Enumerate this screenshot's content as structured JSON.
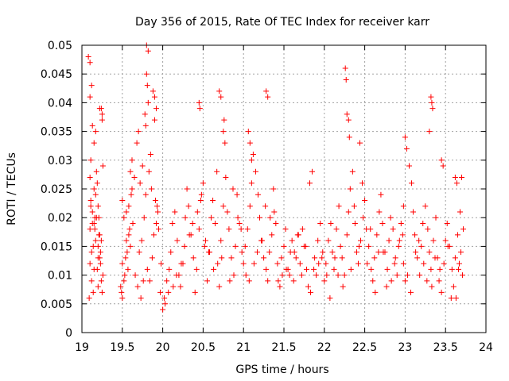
{
  "chart_data": {
    "type": "scatter",
    "title": "Day 356 of 2015, Rate Of TEC Index for receiver karr",
    "xlabel": "GPS time / hours",
    "ylabel": "ROTI / TECUs",
    "xlim": [
      19,
      24
    ],
    "ylim": [
      0,
      0.05
    ],
    "x_ticks": [
      19,
      19.5,
      20,
      20.5,
      21,
      21.5,
      22,
      22.5,
      23,
      23.5,
      24
    ],
    "x_tick_labels": [
      "19",
      "19.5",
      "20",
      "20.5",
      "21",
      "21.5",
      "22",
      "22.5",
      "23",
      "23.5",
      "24"
    ],
    "y_ticks": [
      0,
      0.005,
      0.01,
      0.015,
      0.02,
      0.025,
      0.03,
      0.035,
      0.04,
      0.045,
      0.05
    ],
    "y_tick_labels": [
      "0",
      "0.005",
      "0.01",
      "0.015",
      "0.02",
      "0.025",
      "0.03",
      "0.035",
      "0.04",
      "0.045",
      "0.05"
    ],
    "grid": true,
    "marker": "+",
    "color": "#ff0000",
    "series": [
      {
        "name": "ROTI",
        "x": [
          19.08,
          19.1,
          19.12,
          19.15,
          19.18,
          19.2,
          19.22,
          19.25,
          19.1,
          19.12,
          19.14,
          19.16,
          19.2,
          19.22,
          19.24,
          19.09,
          19.11,
          19.13,
          19.17,
          19.19,
          19.21,
          19.23,
          19.26,
          19.1,
          19.13,
          19.15,
          19.18,
          19.2,
          19.23,
          19.11,
          19.14,
          19.16,
          19.19,
          19.24,
          19.1,
          19.12,
          19.15,
          19.17,
          19.21,
          19.25,
          19.1,
          19.11,
          19.13,
          19.24,
          19.25,
          19.26,
          19.15,
          19.17,
          19.2,
          19.22,
          19.48,
          19.5,
          19.52,
          19.55,
          19.58,
          19.6,
          19.62,
          19.5,
          19.53,
          19.56,
          19.59,
          19.61,
          19.49,
          19.52,
          19.54,
          19.57,
          19.6,
          19.63,
          19.5,
          19.55,
          19.58,
          19.62,
          19.65,
          19.68,
          19.7,
          19.72,
          19.75,
          19.78,
          19.8,
          19.82,
          19.85,
          19.88,
          19.9,
          19.93,
          19.95,
          19.98,
          19.66,
          19.69,
          19.71,
          19.74,
          19.77,
          19.79,
          19.81,
          19.84,
          19.87,
          19.89,
          19.92,
          19.94,
          19.97,
          19.8,
          19.81,
          19.82,
          19.79,
          19.9,
          19.92,
          19.73,
          19.76,
          19.83,
          19.86,
          19.91,
          20.0,
          20.02,
          20.05,
          20.08,
          20.1,
          20.12,
          20.15,
          20.18,
          20.2,
          20.22,
          20.25,
          20.28,
          20.3,
          20.32,
          20.35,
          20.38,
          20.4,
          20.42,
          20.45,
          20.48,
          20.5,
          20.52,
          20.55,
          20.58,
          20.6,
          20.62,
          20.65,
          20.68,
          20.7,
          20.72,
          20.75,
          20.78,
          20.8,
          20.82,
          20.85,
          20.88,
          20.9,
          20.92,
          20.95,
          20.98,
          20.45,
          20.46,
          20.7,
          20.72,
          20.75,
          20.76,
          20.77,
          20.03,
          20.13,
          20.23,
          20.33,
          20.43,
          20.53,
          20.63,
          20.73,
          20.83,
          20.93,
          20.07,
          20.17,
          20.27,
          20.37,
          20.47,
          20.57,
          20.67,
          20.87,
          20.97,
          21.0,
          21.02,
          21.05,
          21.08,
          21.1,
          21.12,
          21.15,
          21.18,
          21.2,
          21.22,
          21.25,
          21.28,
          21.3,
          21.32,
          21.35,
          21.38,
          21.4,
          21.42,
          21.45,
          21.48,
          21.5,
          21.52,
          21.55,
          21.58,
          21.6,
          21.62,
          21.65,
          21.68,
          21.7,
          21.72,
          21.75,
          21.78,
          21.8,
          21.82,
          21.85,
          21.88,
          21.9,
          21.92,
          21.95,
          21.98,
          21.06,
          21.08,
          21.1,
          21.28,
          21.3,
          21.03,
          21.13,
          21.23,
          21.33,
          21.43,
          21.53,
          21.63,
          21.73,
          21.83,
          21.93,
          21.07,
          21.17,
          21.27,
          21.37,
          21.47,
          21.57,
          21.67,
          21.77,
          21.87,
          21.97,
          22.0,
          22.02,
          22.05,
          22.08,
          22.1,
          22.12,
          22.15,
          22.18,
          22.2,
          22.22,
          22.25,
          22.28,
          22.3,
          22.32,
          22.35,
          22.38,
          22.4,
          22.42,
          22.45,
          22.48,
          22.5,
          22.52,
          22.55,
          22.58,
          22.6,
          22.62,
          22.65,
          22.68,
          22.7,
          22.72,
          22.75,
          22.78,
          22.8,
          22.82,
          22.85,
          22.88,
          22.9,
          22.92,
          22.95,
          22.98,
          22.26,
          22.27,
          22.28,
          22.3,
          22.31,
          22.03,
          22.13,
          22.23,
          22.33,
          22.43,
          22.53,
          22.63,
          22.73,
          22.83,
          22.93,
          22.07,
          22.17,
          22.37,
          22.47,
          22.57,
          22.67,
          22.77,
          22.87,
          22.97,
          22.44,
          23.0,
          23.02,
          23.05,
          23.08,
          23.1,
          23.12,
          23.15,
          23.18,
          23.2,
          23.22,
          23.25,
          23.28,
          23.3,
          23.32,
          23.35,
          23.38,
          23.4,
          23.42,
          23.45,
          23.48,
          23.5,
          23.52,
          23.55,
          23.58,
          23.6,
          23.62,
          23.65,
          23.68,
          23.7,
          23.72,
          23.32,
          23.33,
          23.34,
          23.3,
          22.98,
          23.0,
          23.45,
          23.47,
          23.62,
          23.64,
          23.03,
          23.13,
          23.23,
          23.33,
          23.43,
          23.53,
          23.63,
          23.07,
          23.17,
          23.27,
          23.37,
          23.57,
          23.67,
          23.71,
          23.69,
          23.66
        ],
        "y": [
          0.048,
          0.047,
          0.043,
          0.025,
          0.02,
          0.015,
          0.039,
          0.038,
          0.012,
          0.009,
          0.007,
          0.018,
          0.022,
          0.013,
          0.016,
          0.006,
          0.03,
          0.021,
          0.024,
          0.011,
          0.017,
          0.014,
          0.01,
          0.041,
          0.036,
          0.019,
          0.028,
          0.008,
          0.012,
          0.023,
          0.015,
          0.02,
          0.026,
          0.009,
          0.018,
          0.014,
          0.011,
          0.016,
          0.02,
          0.007,
          0.027,
          0.022,
          0.019,
          0.039,
          0.037,
          0.029,
          0.033,
          0.035,
          0.013,
          0.017,
          0.008,
          0.012,
          0.02,
          0.016,
          0.022,
          0.028,
          0.025,
          0.006,
          0.01,
          0.014,
          0.018,
          0.024,
          0.007,
          0.009,
          0.013,
          0.011,
          0.015,
          0.019,
          0.023,
          0.021,
          0.017,
          0.03,
          0.027,
          0.033,
          0.035,
          0.026,
          0.029,
          0.038,
          0.05,
          0.049,
          0.031,
          0.042,
          0.037,
          0.022,
          0.018,
          0.012,
          0.01,
          0.008,
          0.014,
          0.016,
          0.02,
          0.024,
          0.011,
          0.009,
          0.013,
          0.017,
          0.019,
          0.021,
          0.007,
          0.045,
          0.043,
          0.04,
          0.036,
          0.041,
          0.039,
          0.006,
          0.009,
          0.028,
          0.025,
          0.023,
          0.004,
          0.006,
          0.009,
          0.011,
          0.014,
          0.019,
          0.021,
          0.016,
          0.01,
          0.008,
          0.012,
          0.02,
          0.025,
          0.022,
          0.017,
          0.013,
          0.007,
          0.011,
          0.018,
          0.024,
          0.026,
          0.015,
          0.009,
          0.014,
          0.02,
          0.023,
          0.019,
          0.012,
          0.008,
          0.016,
          0.022,
          0.027,
          0.021,
          0.018,
          0.013,
          0.01,
          0.015,
          0.024,
          0.019,
          0.014,
          0.04,
          0.039,
          0.042,
          0.041,
          0.035,
          0.037,
          0.033,
          0.005,
          0.008,
          0.012,
          0.017,
          0.021,
          0.016,
          0.011,
          0.013,
          0.009,
          0.02,
          0.007,
          0.01,
          0.015,
          0.019,
          0.023,
          0.014,
          0.028,
          0.025,
          0.018,
          0.012,
          0.015,
          0.018,
          0.022,
          0.026,
          0.031,
          0.028,
          0.024,
          0.02,
          0.016,
          0.013,
          0.011,
          0.009,
          0.014,
          0.017,
          0.021,
          0.019,
          0.012,
          0.008,
          0.01,
          0.015,
          0.018,
          0.011,
          0.014,
          0.016,
          0.009,
          0.013,
          0.017,
          0.012,
          0.01,
          0.015,
          0.011,
          0.008,
          0.026,
          0.028,
          0.013,
          0.01,
          0.016,
          0.019,
          0.014,
          0.035,
          0.033,
          0.03,
          0.042,
          0.041,
          0.01,
          0.012,
          0.016,
          0.02,
          0.009,
          0.011,
          0.014,
          0.018,
          0.007,
          0.012,
          0.009,
          0.014,
          0.022,
          0.025,
          0.013,
          0.01,
          0.017,
          0.015,
          0.011,
          0.013,
          0.009,
          0.012,
          0.016,
          0.019,
          0.014,
          0.011,
          0.018,
          0.022,
          0.015,
          0.013,
          0.01,
          0.017,
          0.021,
          0.025,
          0.028,
          0.019,
          0.014,
          0.012,
          0.016,
          0.02,
          0.023,
          0.018,
          0.015,
          0.011,
          0.009,
          0.013,
          0.017,
          0.021,
          0.024,
          0.019,
          0.014,
          0.011,
          0.016,
          0.02,
          0.018,
          0.013,
          0.01,
          0.015,
          0.019,
          0.022,
          0.046,
          0.044,
          0.038,
          0.037,
          0.034,
          0.01,
          0.013,
          0.008,
          0.011,
          0.015,
          0.012,
          0.007,
          0.014,
          0.009,
          0.016,
          0.006,
          0.01,
          0.022,
          0.026,
          0.018,
          0.014,
          0.008,
          0.012,
          0.017,
          0.033,
          0.034,
          0.032,
          0.029,
          0.026,
          0.021,
          0.017,
          0.013,
          0.01,
          0.015,
          0.019,
          0.022,
          0.018,
          0.014,
          0.011,
          0.016,
          0.02,
          0.013,
          0.009,
          0.007,
          0.012,
          0.016,
          0.019,
          0.015,
          0.011,
          0.008,
          0.013,
          0.017,
          0.021,
          0.027,
          0.018,
          0.041,
          0.04,
          0.039,
          0.035,
          0.012,
          0.009,
          0.03,
          0.029,
          0.027,
          0.026,
          0.01,
          0.014,
          0.012,
          0.008,
          0.011,
          0.015,
          0.006,
          0.007,
          0.016,
          0.009,
          0.013,
          0.006,
          0.012,
          0.01,
          0.014,
          0.011
        ]
      }
    ]
  }
}
